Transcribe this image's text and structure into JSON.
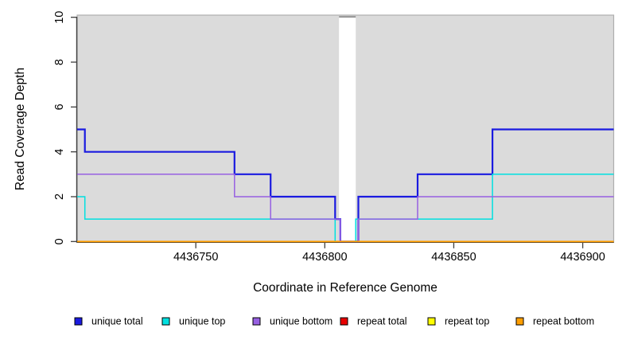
{
  "chart_data": {
    "type": "line",
    "step": "after",
    "title": "",
    "xlabel": "Coordinate in Reference Genome",
    "ylabel": "Read Coverage Depth",
    "xlim": [
      4436704,
      4436912
    ],
    "ylim": [
      0,
      10
    ],
    "xticks": [
      4436750,
      4436800,
      4436850,
      4436900
    ],
    "yticks": [
      0,
      2,
      4,
      6,
      8,
      10
    ],
    "grid": false,
    "plot_bg_color": "#DBDBDB",
    "plot_border_color": "#AEAEAE",
    "axis_color": "#3F3F3F",
    "masked_region": {
      "from": 4436805.5,
      "to": 4436812,
      "color": "#FFFFFF",
      "top_edge_color": "#8F8F8F"
    },
    "legend_position": "bottom",
    "series": [
      {
        "name": "unique total",
        "color": "#1A1AE0",
        "width": 2.2,
        "points": [
          [
            4436704,
            5
          ],
          [
            4436707,
            4
          ],
          [
            4436765,
            3
          ],
          [
            4436779,
            2
          ],
          [
            4436804,
            1
          ],
          [
            4436806,
            0
          ],
          [
            4436813,
            2
          ],
          [
            4436836,
            3
          ],
          [
            4436865,
            5
          ],
          [
            4436912,
            5
          ]
        ]
      },
      {
        "name": "unique top",
        "color": "#00E0E0",
        "width": 1.5,
        "points": [
          [
            4436704,
            2
          ],
          [
            4436707,
            1
          ],
          [
            4436804,
            0
          ],
          [
            4436812,
            1
          ],
          [
            4436865,
            3
          ],
          [
            4436912,
            3
          ]
        ]
      },
      {
        "name": "unique bottom",
        "color": "#9760E2",
        "width": 1.5,
        "points": [
          [
            4436704,
            3
          ],
          [
            4436765,
            2
          ],
          [
            4436779,
            1
          ],
          [
            4436806,
            0
          ],
          [
            4436813,
            1
          ],
          [
            4436836,
            2
          ],
          [
            4436912,
            2
          ]
        ]
      },
      {
        "name": "repeat total",
        "color": "#E80000",
        "width": 1.3,
        "points": [
          [
            4436704,
            0
          ],
          [
            4436912,
            0
          ]
        ]
      },
      {
        "name": "repeat top",
        "color": "#FFFF00",
        "width": 1.3,
        "points": [
          [
            4436704,
            0
          ],
          [
            4436912,
            0
          ]
        ]
      },
      {
        "name": "repeat bottom",
        "color": "#FF9E00",
        "width": 1.8,
        "points": [
          [
            4436704,
            0
          ],
          [
            4436912,
            0
          ]
        ]
      }
    ]
  }
}
